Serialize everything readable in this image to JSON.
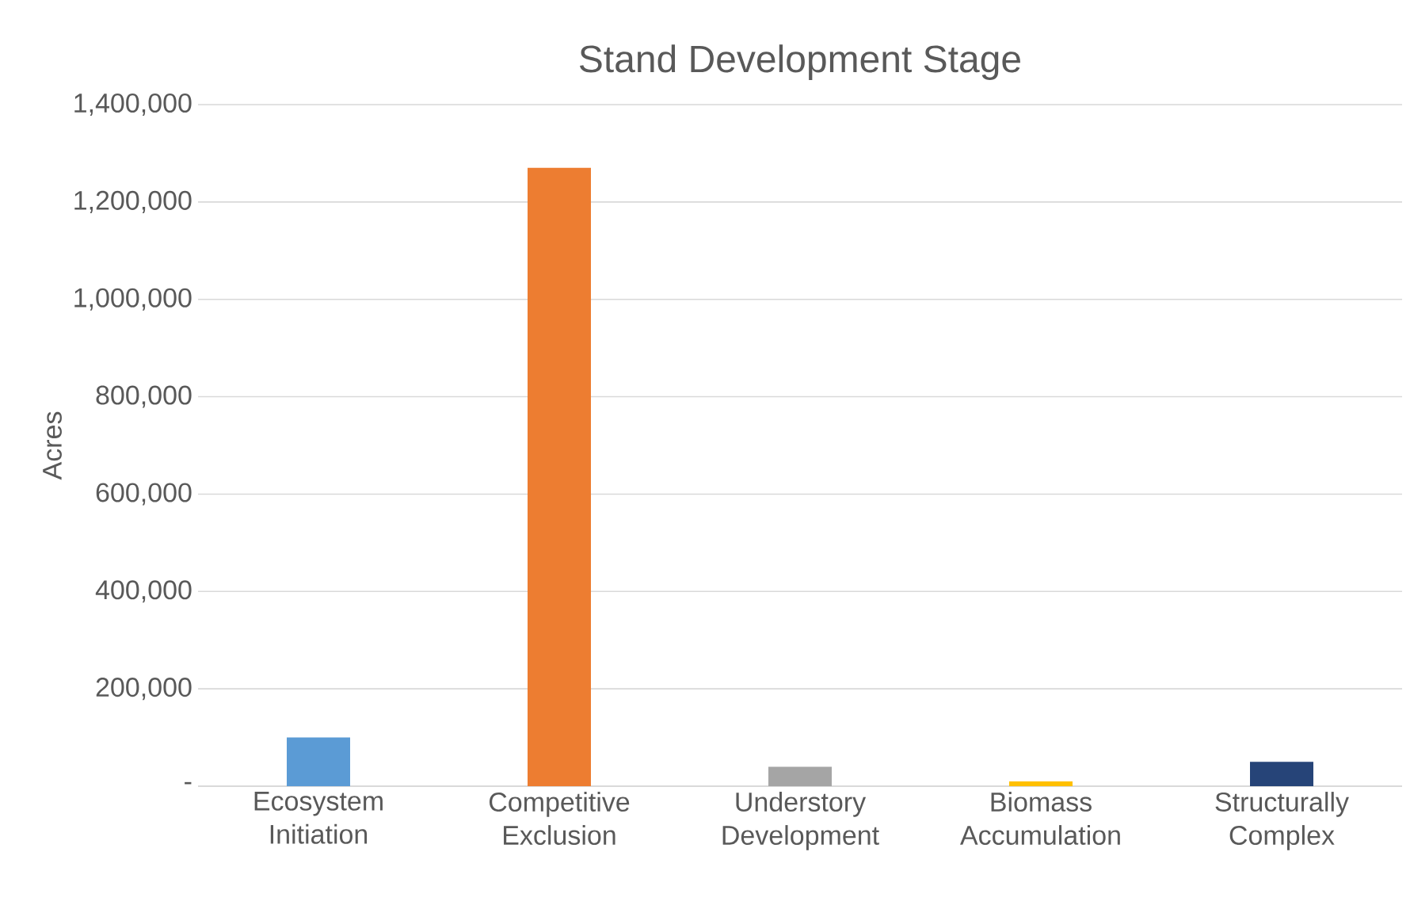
{
  "chart_data": {
    "type": "bar",
    "title": "Stand Development Stage",
    "ylabel": "Acres",
    "categories": [
      "Ecosystem Initiation",
      "Competitive Exclusion",
      "Understory Development",
      "Biomass Accumulation",
      "Structurally Complex"
    ],
    "values": [
      100000,
      1270000,
      40000,
      10000,
      50000
    ],
    "colors": [
      "#5b9bd5",
      "#ed7d31",
      "#a5a5a5",
      "#ffc000",
      "#264478"
    ],
    "ylim": [
      0,
      1400000
    ],
    "yticks": [
      {
        "value": 0,
        "label": "-"
      },
      {
        "value": 200000,
        "label": "200,000"
      },
      {
        "value": 400000,
        "label": "400,000"
      },
      {
        "value": 600000,
        "label": "600,000"
      },
      {
        "value": 800000,
        "label": "800,000"
      },
      {
        "value": 1000000,
        "label": "1,000,000"
      },
      {
        "value": 1200000,
        "label": "1,200,000"
      },
      {
        "value": 1400000,
        "label": "1,400,000"
      }
    ],
    "grid": "y"
  }
}
